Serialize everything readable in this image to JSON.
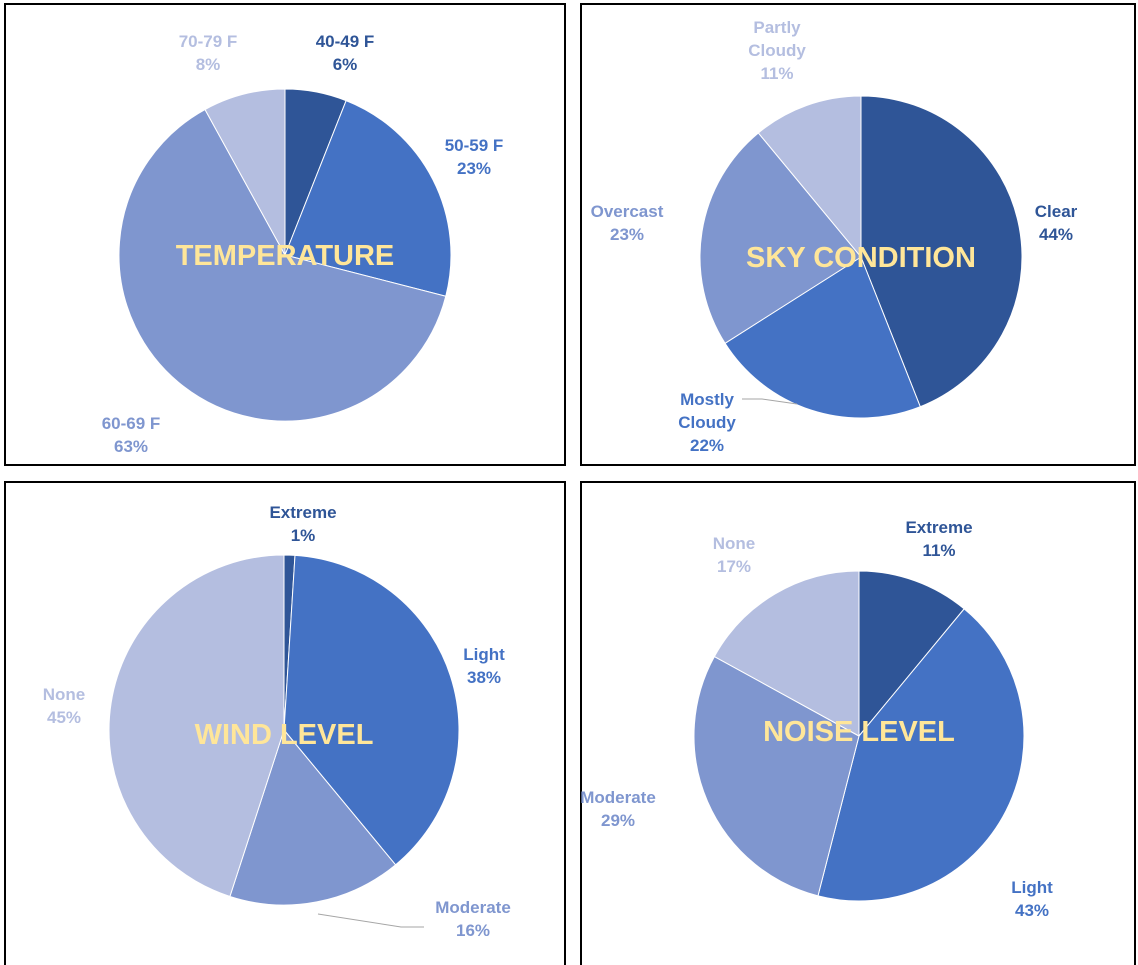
{
  "colors": {
    "dark": "#2f5597",
    "mid": "#4472c4",
    "light": "#7f96cf",
    "pale": "#b4bee0",
    "title": "#ffe699"
  },
  "chart_data": [
    {
      "type": "pie",
      "title": "TEMPERATURE",
      "slices": [
        {
          "label": "40-49 F",
          "value": 6,
          "pct": "6%",
          "color": "#2f5597",
          "label_color": "#2f5597"
        },
        {
          "label": "50-59 F",
          "value": 23,
          "pct": "23%",
          "color": "#4472c4",
          "label_color": "#4472c4"
        },
        {
          "label": "60-69 F",
          "value": 63,
          "pct": "63%",
          "color": "#7f96cf",
          "label_color": "#7f96cf"
        },
        {
          "label": "70-79 F",
          "value": 8,
          "pct": "8%",
          "color": "#b4bee0",
          "label_color": "#b4bee0"
        }
      ]
    },
    {
      "type": "pie",
      "title": "SKY CONDITION",
      "slices": [
        {
          "label": "Clear",
          "value": 44,
          "pct": "44%",
          "color": "#2f5597",
          "label_color": "#2f5597"
        },
        {
          "label": "Mostly Cloudy",
          "value": 22,
          "pct": "22%",
          "color": "#4472c4",
          "label_color": "#4472c4"
        },
        {
          "label": "Overcast",
          "value": 23,
          "pct": "23%",
          "color": "#7f96cf",
          "label_color": "#7f96cf"
        },
        {
          "label": "Partly Cloudy",
          "value": 11,
          "pct": "11%",
          "color": "#b4bee0",
          "label_color": "#b4bee0"
        }
      ]
    },
    {
      "type": "pie",
      "title": "WIND LEVEL",
      "slices": [
        {
          "label": "Extreme",
          "value": 1,
          "pct": "1%",
          "color": "#2f5597",
          "label_color": "#2f5597"
        },
        {
          "label": "Light",
          "value": 38,
          "pct": "38%",
          "color": "#4472c4",
          "label_color": "#4472c4"
        },
        {
          "label": "Moderate",
          "value": 16,
          "pct": "16%",
          "color": "#7f96cf",
          "label_color": "#7f96cf"
        },
        {
          "label": "None",
          "value": 45,
          "pct": "45%",
          "color": "#b4bee0",
          "label_color": "#b4bee0"
        }
      ]
    },
    {
      "type": "pie",
      "title": "NOISE LEVEL",
      "slices": [
        {
          "label": "Extreme",
          "value": 11,
          "pct": "11%",
          "color": "#2f5597",
          "label_color": "#2f5597"
        },
        {
          "label": "Light",
          "value": 43,
          "pct": "43%",
          "color": "#4472c4",
          "label_color": "#4472c4"
        },
        {
          "label": "Moderate",
          "value": 29,
          "pct": "29%",
          "color": "#7f96cf",
          "label_color": "#7f96cf"
        },
        {
          "label": "None",
          "value": 17,
          "pct": "17%",
          "color": "#b4bee0",
          "label_color": "#b4bee0"
        }
      ]
    }
  ]
}
